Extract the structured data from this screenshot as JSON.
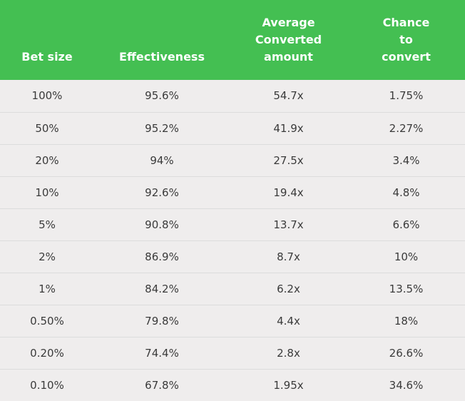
{
  "table": {
    "headers": [
      "Bet size",
      "Effectiveness",
      "Average Converted amount",
      "Chance to convert"
    ],
    "rows": [
      [
        "100%",
        "95.6%",
        "54.7x",
        "1.75%"
      ],
      [
        "50%",
        "95.2%",
        "41.9x",
        "2.27%"
      ],
      [
        "20%",
        "94%",
        "27.5x",
        "3.4%"
      ],
      [
        "10%",
        "92.6%",
        "19.4x",
        "4.8%"
      ],
      [
        "5%",
        "90.8%",
        "13.7x",
        "6.6%"
      ],
      [
        "2%",
        "86.9%",
        "8.7x",
        "10%"
      ],
      [
        "1%",
        "84.2%",
        "6.2x",
        "13.5%"
      ],
      [
        "0.50%",
        "79.8%",
        "4.4x",
        "18%"
      ],
      [
        "0.20%",
        "74.4%",
        "2.8x",
        "26.6%"
      ],
      [
        "0.10%",
        "67.8%",
        "1.95x",
        "34.6%"
      ]
    ]
  },
  "colors": {
    "header_bg": "#44bf52",
    "header_text": "#ffffff",
    "body_bg": "#efeded",
    "body_text": "#3a3a3a",
    "divider": "#dcdcdc"
  }
}
